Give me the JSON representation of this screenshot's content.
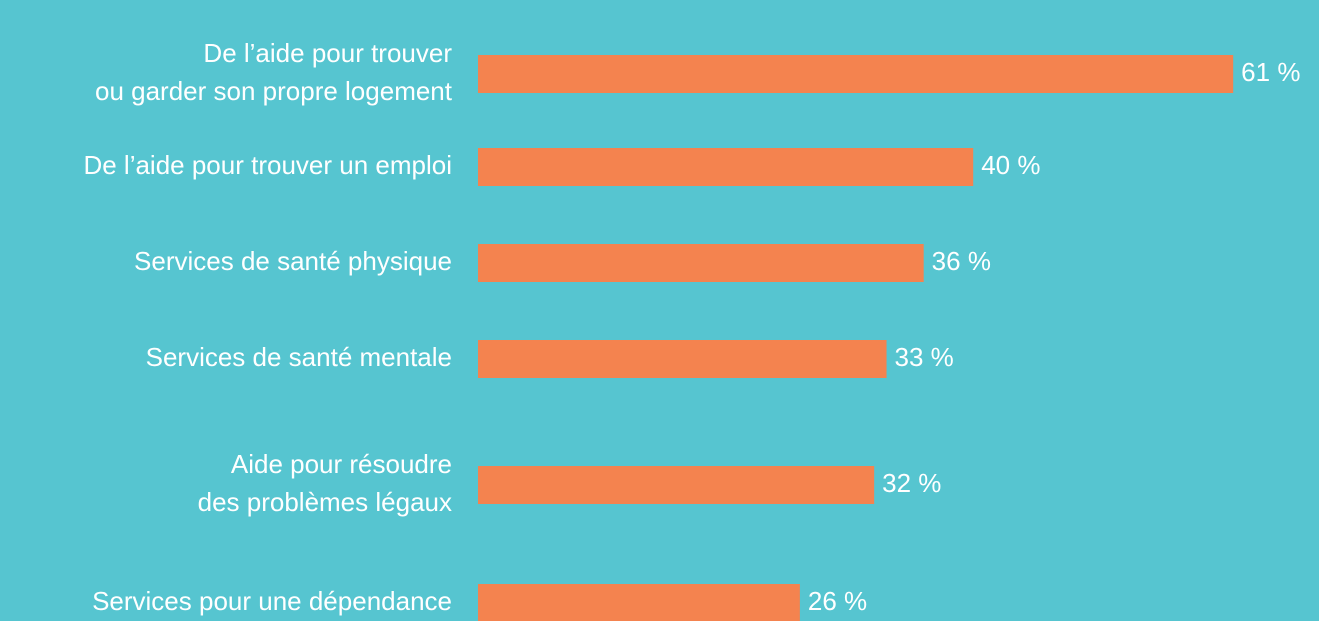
{
  "chart_data": {
    "type": "bar",
    "orientation": "horizontal",
    "categories": [
      [
        "De l’aide pour trouver",
        "ou garder son propre logement"
      ],
      [
        "De l’aide pour trouver un emploi"
      ],
      [
        "Services de santé physique"
      ],
      [
        "Services de santé mentale"
      ],
      [
        "Aide pour résoudre",
        "des problèmes légaux"
      ],
      [
        "Services pour une dépendance"
      ]
    ],
    "values": [
      61,
      40,
      36,
      33,
      32,
      26
    ],
    "value_labels": [
      "61 %",
      "40 %",
      "36 %",
      "33 %",
      "32 %",
      "26 %"
    ],
    "color": "#f4834f",
    "background": "#56c5d0"
  }
}
